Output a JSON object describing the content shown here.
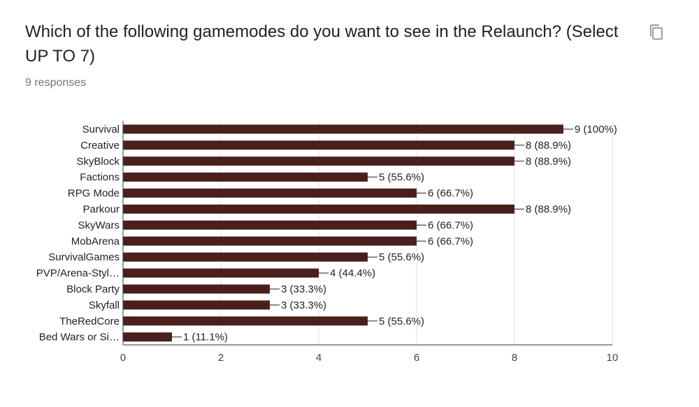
{
  "question": {
    "title": "Which of the following gamemodes do you want to see in the Relaunch? (Select UP TO 7)",
    "responses": "9 responses"
  },
  "icons": {
    "copy": "copy-icon"
  },
  "colors": {
    "bar": "#4a1f1c",
    "grid": "#e0e0e0",
    "axis": "#333333",
    "text": "#222222"
  },
  "chart_data": {
    "type": "bar",
    "orientation": "horizontal",
    "categories": [
      "Survival",
      "Creative",
      "SkyBlock",
      "Factions",
      "RPG Mode",
      "Parkour",
      "SkyWars",
      "MobArena",
      "SurvivalGames",
      "PVP/Arena-Styl…",
      "Block Party",
      "Skyfall",
      "TheRedCore",
      "Bed Wars or Si…"
    ],
    "values": [
      9,
      8,
      8,
      5,
      6,
      8,
      6,
      6,
      5,
      4,
      3,
      3,
      5,
      1
    ],
    "data_labels": [
      "9 (100%)",
      "8 (88.9%)",
      "8 (88.9%)",
      "5 (55.6%)",
      "6 (66.7%)",
      "8 (88.9%)",
      "6 (66.7%)",
      "6 (66.7%)",
      "5 (55.6%)",
      "4 (44.4%)",
      "3 (33.3%)",
      "3 (33.3%)",
      "5 (55.6%)",
      "1 (11.1%)"
    ],
    "xlim": [
      0,
      10
    ],
    "xticks": [
      0,
      2,
      4,
      6,
      8,
      10
    ],
    "grid": true
  }
}
